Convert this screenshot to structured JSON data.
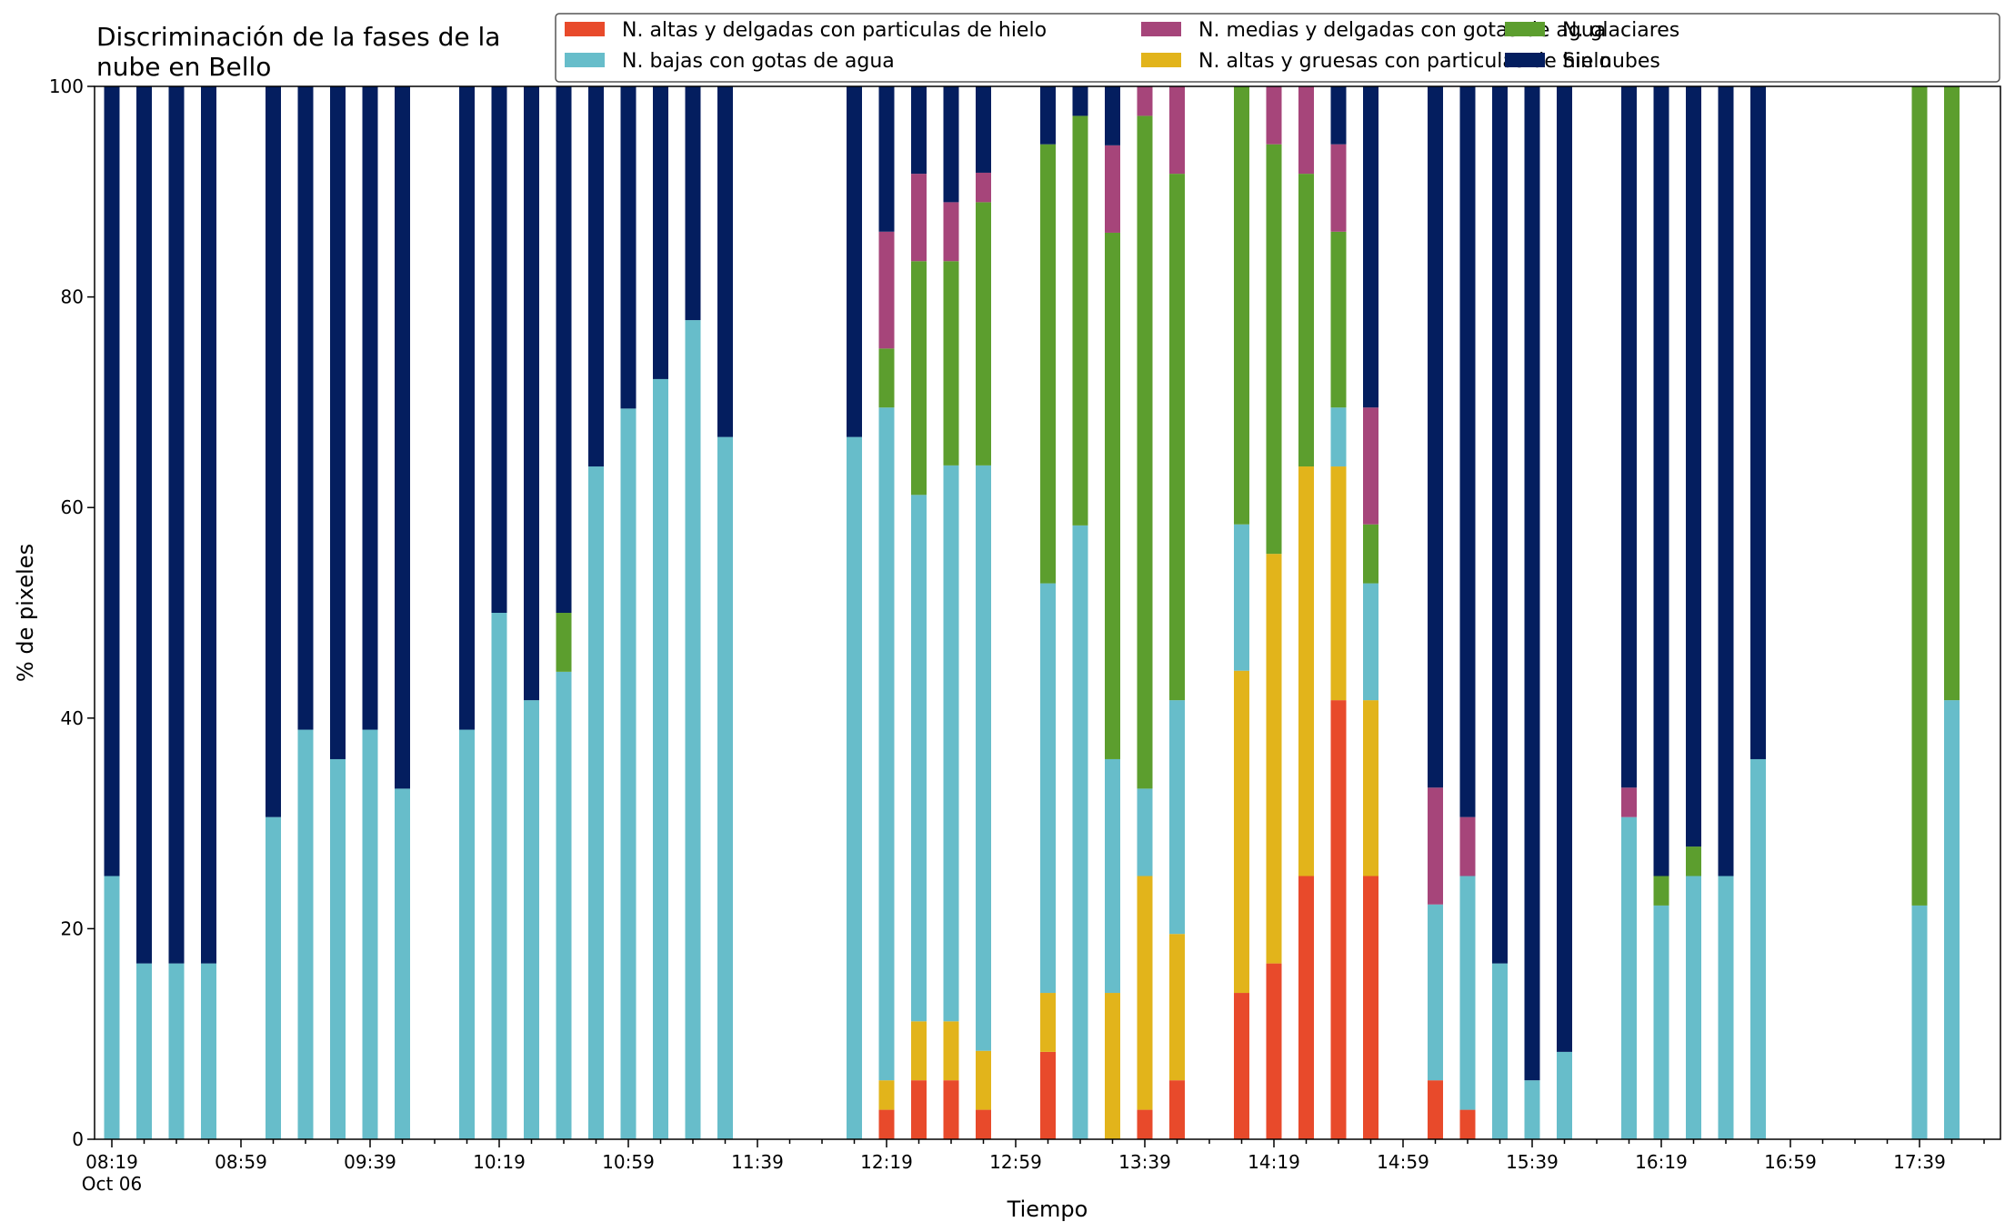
{
  "chart_data": {
    "type": "bar",
    "stacked": true,
    "title_lines": [
      "Discriminación de la fases de la",
      "nube en Bello"
    ],
    "xlabel": "Tiempo",
    "ylabel": "% de pixeles",
    "ylim": [
      0,
      100
    ],
    "yticks": [
      "0",
      "20",
      "40",
      "60",
      "80",
      "100"
    ],
    "xtick_labels": [
      "08:19",
      "08:59",
      "09:39",
      "10:19",
      "10:59",
      "11:39",
      "12:19",
      "12:59",
      "13:39",
      "14:19",
      "14:59",
      "15:39",
      "16:19",
      "16:59",
      "17:39"
    ],
    "xtick_sublabel": "Oct 06",
    "grid": false,
    "legend_position": "top-right",
    "colors": {
      "altas_delgadas_hielo": "#e84a2b",
      "altas_gruesas_hielo": "#e2b41b",
      "bajas_agua": "#67bdca",
      "glaciares": "#5c9e2e",
      "medias_delgadas_agua": "#a6457a",
      "sin_nubes": "#041e5f"
    },
    "series": [
      {
        "key": "altas_delgadas_hielo",
        "name": "N. altas y delgadas con particulas de hielo"
      },
      {
        "key": "altas_gruesas_hielo",
        "name": "N. altas y gruesas con particulas de hielo"
      },
      {
        "key": "bajas_agua",
        "name": "N. bajas con gotas de agua"
      },
      {
        "key": "glaciares",
        "name": "N. glaciares"
      },
      {
        "key": "medias_delgadas_agua",
        "name": "N. medias y delgadas con gotas de agua"
      },
      {
        "key": "sin_nubes",
        "name": "Sin nubes"
      }
    ],
    "legend_order": [
      "altas_delgadas_hielo",
      "bajas_agua",
      "medias_delgadas_agua",
      "altas_gruesas_hielo",
      "glaciares",
      "sin_nubes"
    ],
    "bars": [
      {
        "time": "08:19",
        "values": [
          0,
          0,
          25,
          0,
          0,
          75
        ]
      },
      {
        "time": "08:29",
        "values": [
          0,
          0,
          16.7,
          0,
          0,
          83.3
        ]
      },
      {
        "time": "08:39",
        "values": [
          0,
          0,
          16.7,
          0,
          0,
          83.3
        ]
      },
      {
        "time": "08:49",
        "values": [
          0,
          0,
          16.7,
          0,
          0,
          83.3
        ]
      },
      {
        "time": "09:09",
        "values": [
          0,
          0,
          30.6,
          0,
          0,
          69.4
        ]
      },
      {
        "time": "09:19",
        "values": [
          0,
          0,
          38.9,
          0,
          0,
          61.1
        ]
      },
      {
        "time": "09:29",
        "values": [
          0,
          0,
          36.1,
          0,
          0,
          63.9
        ]
      },
      {
        "time": "09:39",
        "values": [
          0,
          0,
          38.9,
          0,
          0,
          61.1
        ]
      },
      {
        "time": "09:49",
        "values": [
          0,
          0,
          33.3,
          0,
          0,
          66.7
        ]
      },
      {
        "time": "10:09",
        "values": [
          0,
          0,
          38.9,
          0,
          0,
          61.1
        ]
      },
      {
        "time": "10:19",
        "values": [
          0,
          0,
          50,
          0,
          0,
          50
        ]
      },
      {
        "time": "10:29",
        "values": [
          0,
          0,
          41.7,
          0,
          0,
          58.3
        ]
      },
      {
        "time": "10:39",
        "values": [
          0,
          0,
          44.4,
          5.6,
          0,
          50
        ]
      },
      {
        "time": "10:49",
        "values": [
          0,
          0,
          63.9,
          0,
          0,
          36.1
        ]
      },
      {
        "time": "10:59",
        "values": [
          0,
          0,
          69.4,
          0,
          0,
          30.6
        ]
      },
      {
        "time": "11:09",
        "values": [
          0,
          0,
          72.2,
          0,
          0,
          27.8
        ]
      },
      {
        "time": "11:19",
        "values": [
          0,
          0,
          77.8,
          0,
          0,
          22.2
        ]
      },
      {
        "time": "11:29",
        "values": [
          0,
          0,
          66.7,
          0,
          0,
          33.3
        ]
      },
      {
        "time": "12:09",
        "values": [
          0,
          0,
          66.7,
          0,
          0,
          33.3
        ]
      },
      {
        "time": "12:19",
        "values": [
          2.8,
          2.8,
          63.9,
          5.6,
          11.1,
          13.8
        ]
      },
      {
        "time": "12:29",
        "values": [
          5.6,
          5.6,
          50,
          22.2,
          8.3,
          8.3
        ]
      },
      {
        "time": "12:39",
        "values": [
          5.6,
          5.6,
          52.8,
          19.4,
          5.6,
          11
        ]
      },
      {
        "time": "12:49",
        "values": [
          2.8,
          5.6,
          55.6,
          25,
          2.8,
          8.2
        ]
      },
      {
        "time": "13:09",
        "values": [
          8.3,
          5.6,
          38.9,
          41.7,
          0,
          5.5
        ]
      },
      {
        "time": "13:19",
        "values": [
          0,
          0,
          58.3,
          38.9,
          0,
          2.8
        ]
      },
      {
        "time": "13:29",
        "values": [
          0,
          13.9,
          22.2,
          50,
          8.3,
          5.6
        ]
      },
      {
        "time": "13:39",
        "values": [
          2.8,
          22.2,
          8.3,
          63.9,
          2.8,
          0
        ]
      },
      {
        "time": "13:49",
        "values": [
          5.6,
          13.9,
          22.2,
          50,
          8.3,
          0
        ]
      },
      {
        "time": "14:09",
        "values": [
          13.9,
          30.6,
          13.9,
          41.6,
          0,
          0
        ]
      },
      {
        "time": "14:19",
        "values": [
          16.7,
          38.9,
          0,
          38.9,
          5.5,
          0
        ]
      },
      {
        "time": "14:29",
        "values": [
          25,
          38.9,
          0,
          27.8,
          8.3,
          0
        ]
      },
      {
        "time": "14:39",
        "values": [
          41.7,
          22.2,
          5.6,
          16.7,
          8.3,
          5.5
        ]
      },
      {
        "time": "14:49",
        "values": [
          25,
          16.7,
          11.1,
          5.6,
          11.1,
          30.5
        ]
      },
      {
        "time": "15:09",
        "values": [
          5.6,
          0,
          16.7,
          0,
          11.1,
          66.6
        ]
      },
      {
        "time": "15:19",
        "values": [
          2.8,
          0,
          22.2,
          0,
          5.6,
          69.4
        ]
      },
      {
        "time": "15:29",
        "values": [
          0,
          0,
          16.7,
          0,
          0,
          83.3
        ]
      },
      {
        "time": "15:39",
        "values": [
          0,
          0,
          5.6,
          0,
          0,
          94.4
        ]
      },
      {
        "time": "15:49",
        "values": [
          0,
          0,
          8.3,
          0,
          0,
          91.7
        ]
      },
      {
        "time": "16:09",
        "values": [
          0,
          0,
          30.6,
          0,
          2.8,
          66.6
        ]
      },
      {
        "time": "16:19",
        "values": [
          0,
          0,
          22.2,
          2.8,
          0,
          75
        ]
      },
      {
        "time": "16:29",
        "values": [
          0,
          0,
          25,
          2.8,
          0,
          72.2
        ]
      },
      {
        "time": "16:39",
        "values": [
          0,
          0,
          25,
          0,
          0,
          75
        ]
      },
      {
        "time": "16:49",
        "values": [
          0,
          0,
          36.1,
          0,
          0,
          63.9
        ]
      },
      {
        "time": "17:39",
        "values": [
          0,
          0,
          22.2,
          77.8,
          0,
          0
        ]
      },
      {
        "time": "17:49",
        "values": [
          0,
          0,
          41.7,
          58.3,
          0,
          0
        ]
      }
    ]
  }
}
